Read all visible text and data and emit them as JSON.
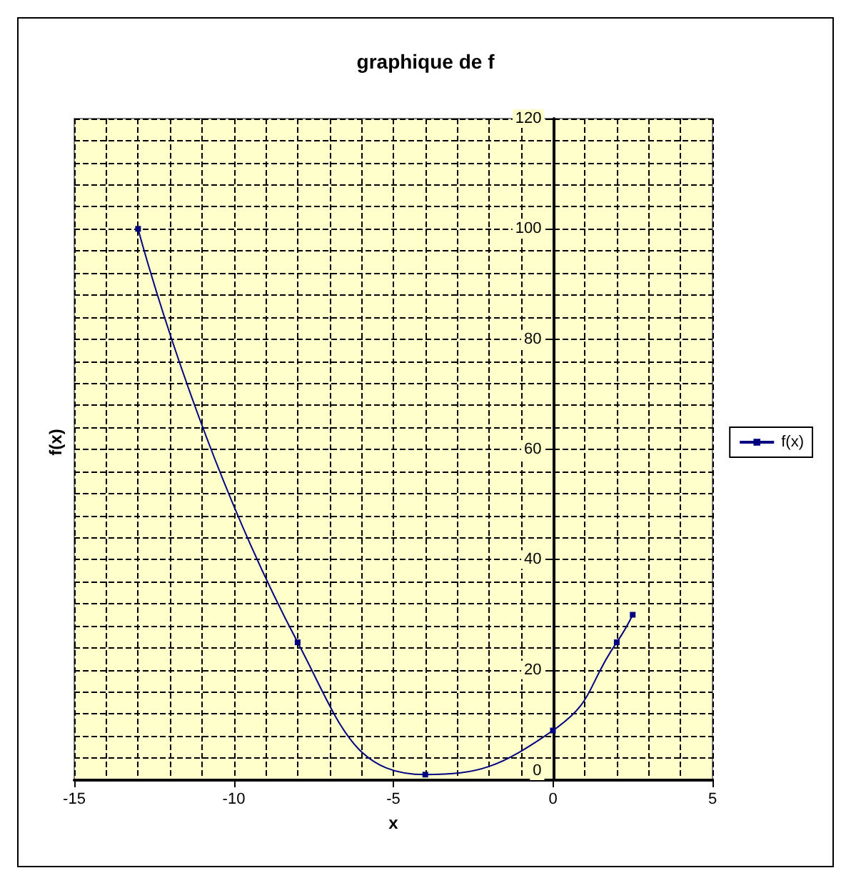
{
  "chart_data": {
    "type": "line",
    "title": "graphique de f",
    "xlabel": "x",
    "ylabel": "f(x)",
    "x": [
      -13,
      -8,
      -4,
      0,
      2,
      2.5
    ],
    "series": [
      {
        "name": "f(x)",
        "color": "#000080",
        "values": [
          100,
          25,
          1,
          9,
          25,
          30
        ]
      }
    ],
    "xlim": [
      -15,
      5
    ],
    "xticks": [
      -15,
      -10,
      -5,
      0,
      5
    ],
    "ylim": [
      0,
      120
    ],
    "yticks": [
      0,
      20,
      40,
      60,
      80,
      100,
      120
    ],
    "grid": true,
    "legend": "right",
    "marker": "square",
    "line_style": "solid"
  }
}
